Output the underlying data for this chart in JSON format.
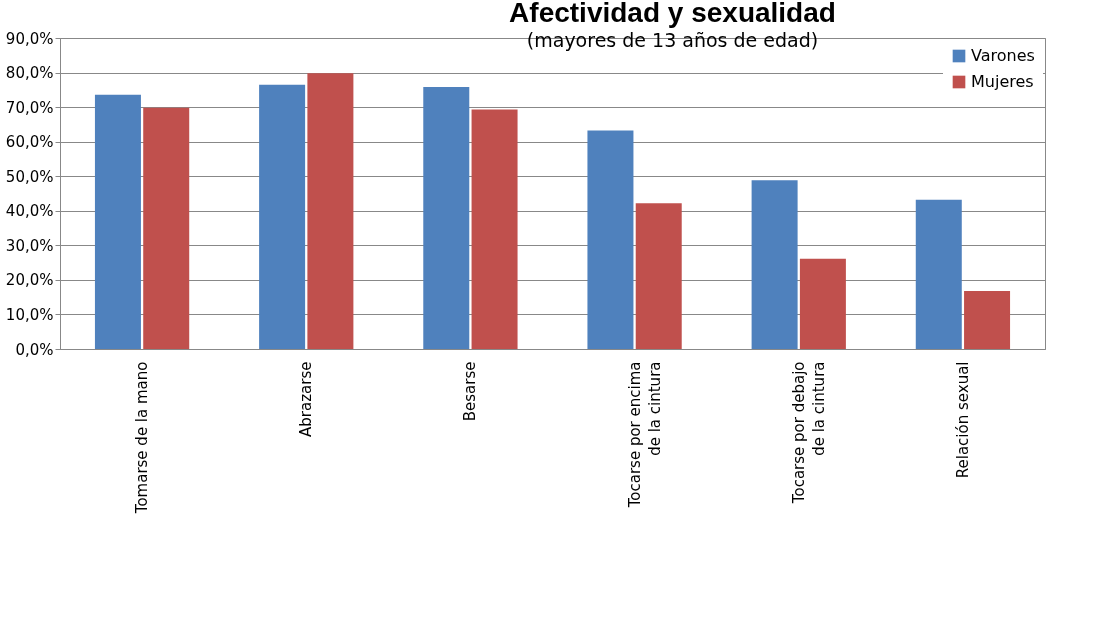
{
  "chart_data": {
    "type": "bar",
    "title": "Afectividad y sexualidad",
    "subtitle": "(mayores de 13 años de edad)",
    "categories": [
      "Tomarse de la mano",
      "Abrazarse",
      "Besarse",
      "Tocarse por encima\nde la cintura",
      "Tocarse por debajo\nde la cintura",
      "Relación sexual"
    ],
    "series": [
      {
        "name": "Varones",
        "color": "#4f81bd",
        "values": [
          73.6,
          76.5,
          75.8,
          63.2,
          48.8,
          43.2
        ]
      },
      {
        "name": "Mujeres",
        "color": "#c0504d",
        "values": [
          69.8,
          79.8,
          69.3,
          42.2,
          26.1,
          16.8
        ]
      }
    ],
    "ylim": [
      0,
      90
    ],
    "yticks": [
      {
        "value": 0,
        "label": "0,0%"
      },
      {
        "value": 10,
        "label": "10,0%"
      },
      {
        "value": 20,
        "label": "20,0%"
      },
      {
        "value": 30,
        "label": "30,0%"
      },
      {
        "value": 40,
        "label": "40,0%"
      },
      {
        "value": 50,
        "label": "50,0%"
      },
      {
        "value": 60,
        "label": "60,0%"
      },
      {
        "value": 70,
        "label": "70,0%"
      },
      {
        "value": 80,
        "label": "80,0%"
      },
      {
        "value": 90,
        "label": "90,0%"
      }
    ],
    "grid": "y",
    "legend": "top right"
  }
}
